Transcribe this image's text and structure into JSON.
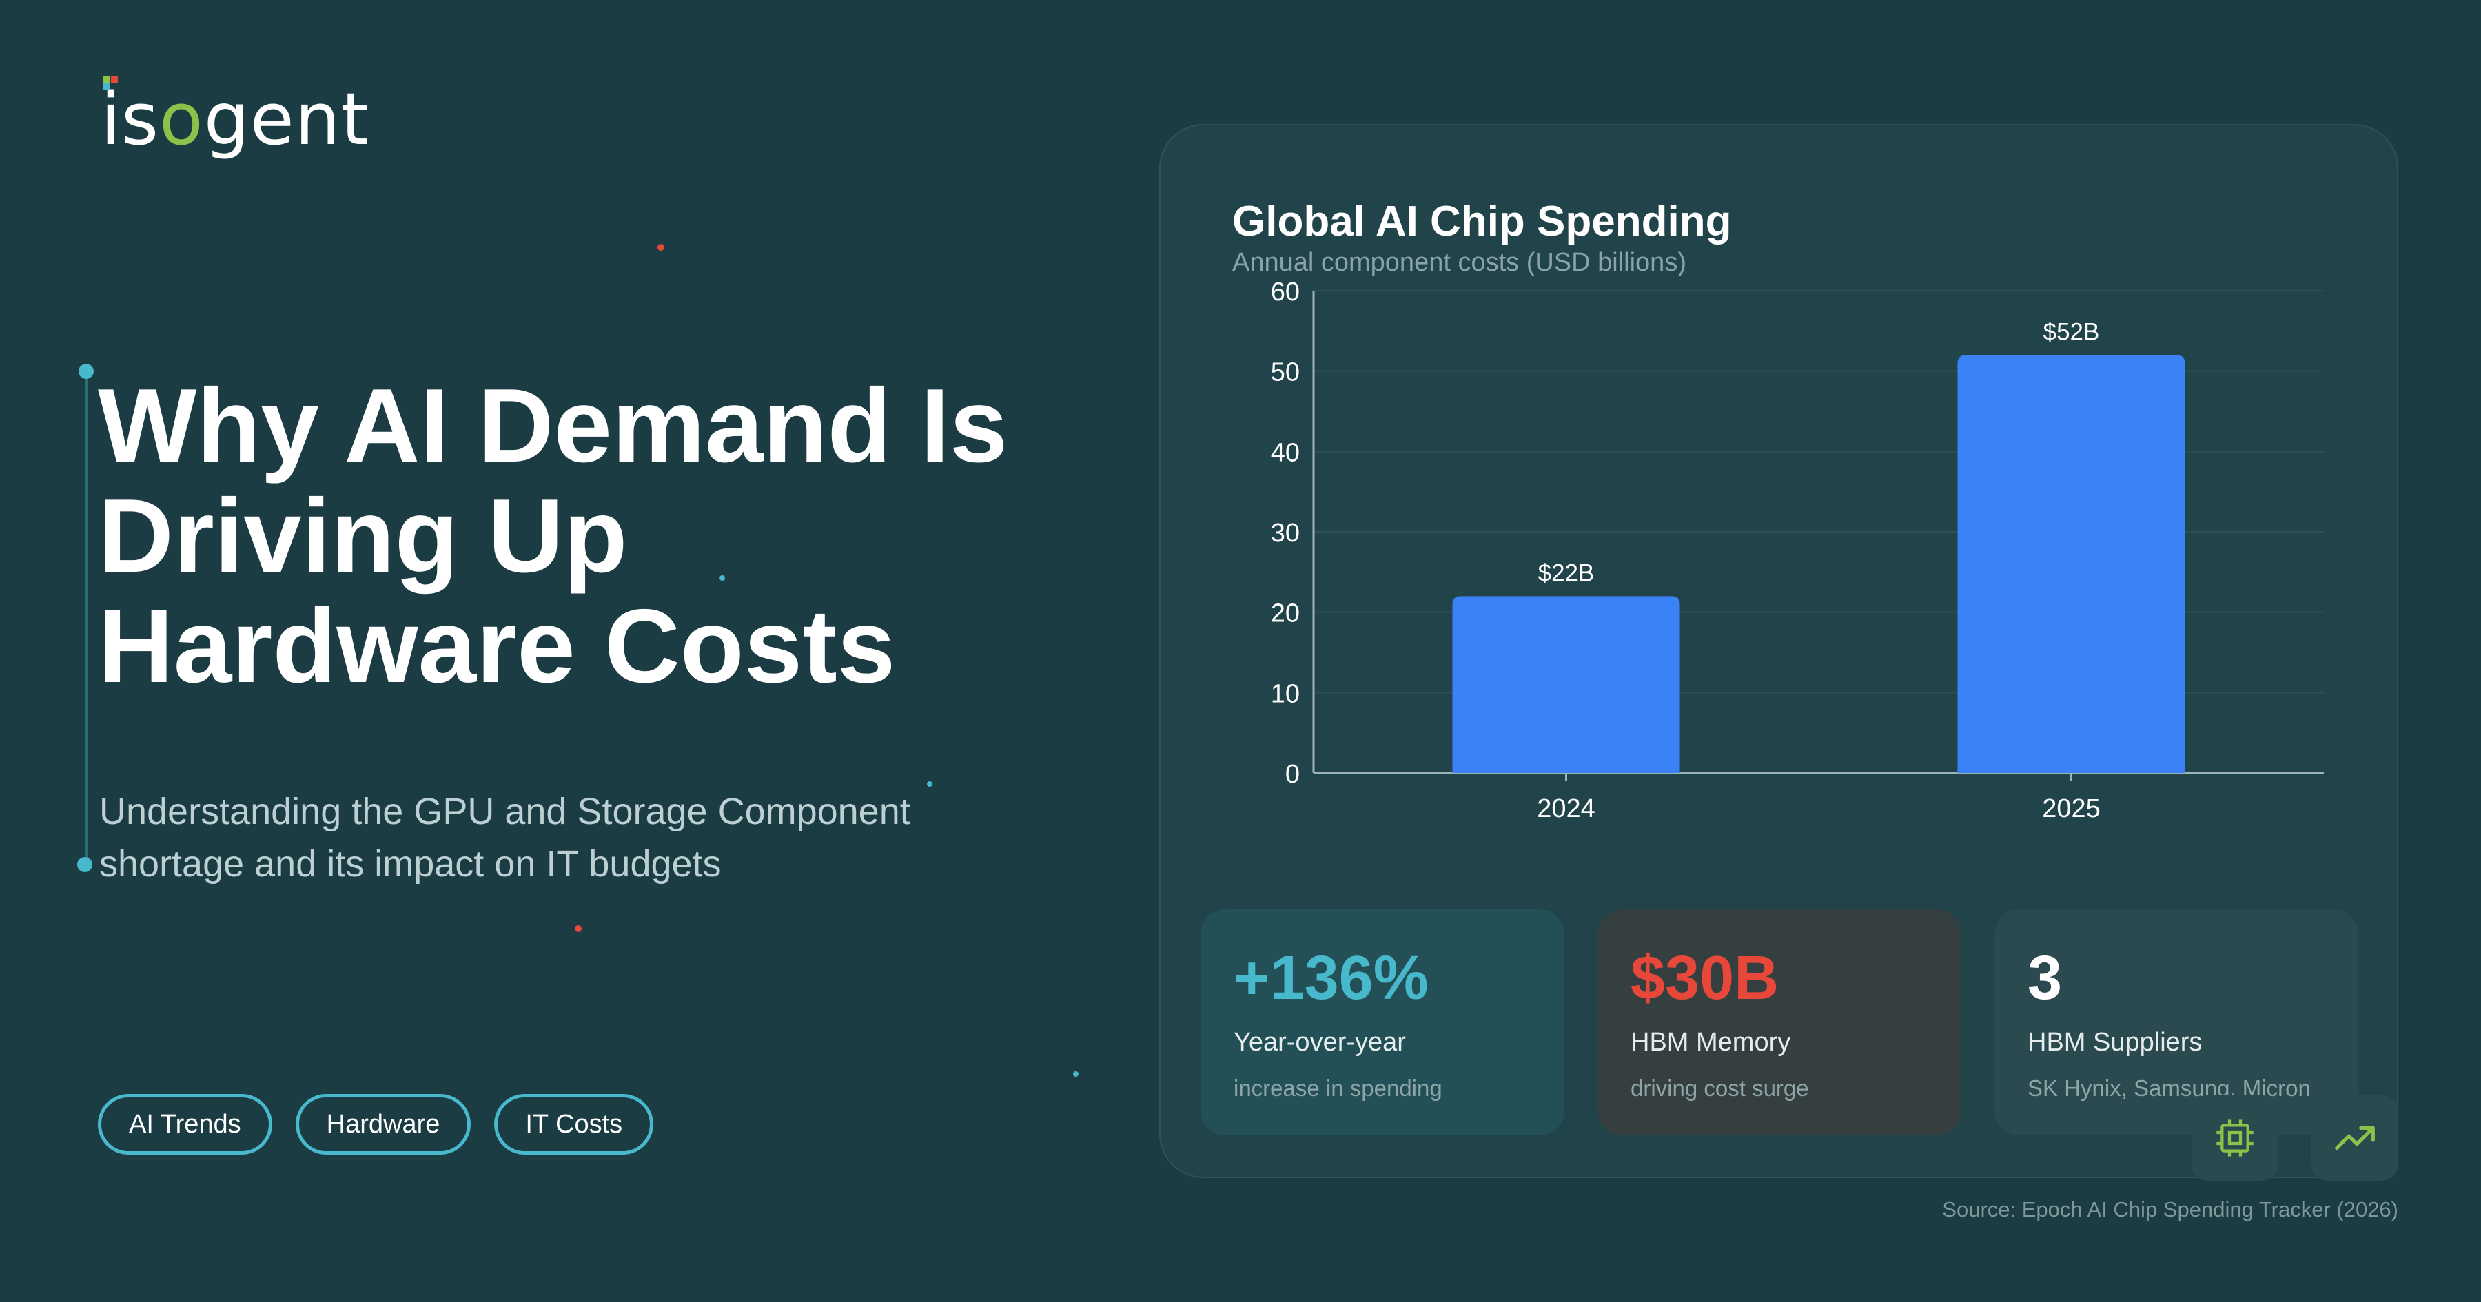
{
  "brand": {
    "logo_text_start": "is",
    "logo_text_o": "o",
    "logo_text_end": "gent"
  },
  "hero": {
    "title": "Why AI Demand Is Driving Up Hardware Costs",
    "subtitle": "Understanding the GPU and Storage Component shortage and its impact on IT budgets"
  },
  "tags": [
    "AI Trends",
    "Hardware",
    "IT Costs"
  ],
  "chart_data": {
    "type": "bar",
    "title": "Global AI Chip Spending",
    "subtitle": "Annual component costs (USD billions)",
    "categories": [
      "2024",
      "2025"
    ],
    "values": [
      22,
      52
    ],
    "data_labels": [
      "$22B",
      "$52B"
    ],
    "ylim": [
      0,
      60
    ],
    "yticks": [
      0,
      10,
      20,
      30,
      40,
      50,
      60
    ],
    "grid": true,
    "bar_color": "#3b82f6"
  },
  "stats": [
    {
      "value": "+136%",
      "label": "Year-over-year",
      "desc": "increase in spending",
      "color": "#48b8cc"
    },
    {
      "value": "$30B",
      "label": "HBM Memory",
      "desc": "driving cost surge",
      "color": "#e8483a"
    },
    {
      "value": "3",
      "label": "HBM Suppliers",
      "desc": "SK Hynix, Samsung, Micron",
      "color": "#ffffff"
    }
  ],
  "icons": {
    "chip": "chip-icon",
    "trend": "trend-up-icon"
  },
  "colors": {
    "accent_green": "#8bc34a",
    "accent_teal": "#48b8cc",
    "accent_red": "#e8483a"
  },
  "footer": {
    "source": "Source: Epoch AI Chip Spending Tracker (2026)"
  }
}
